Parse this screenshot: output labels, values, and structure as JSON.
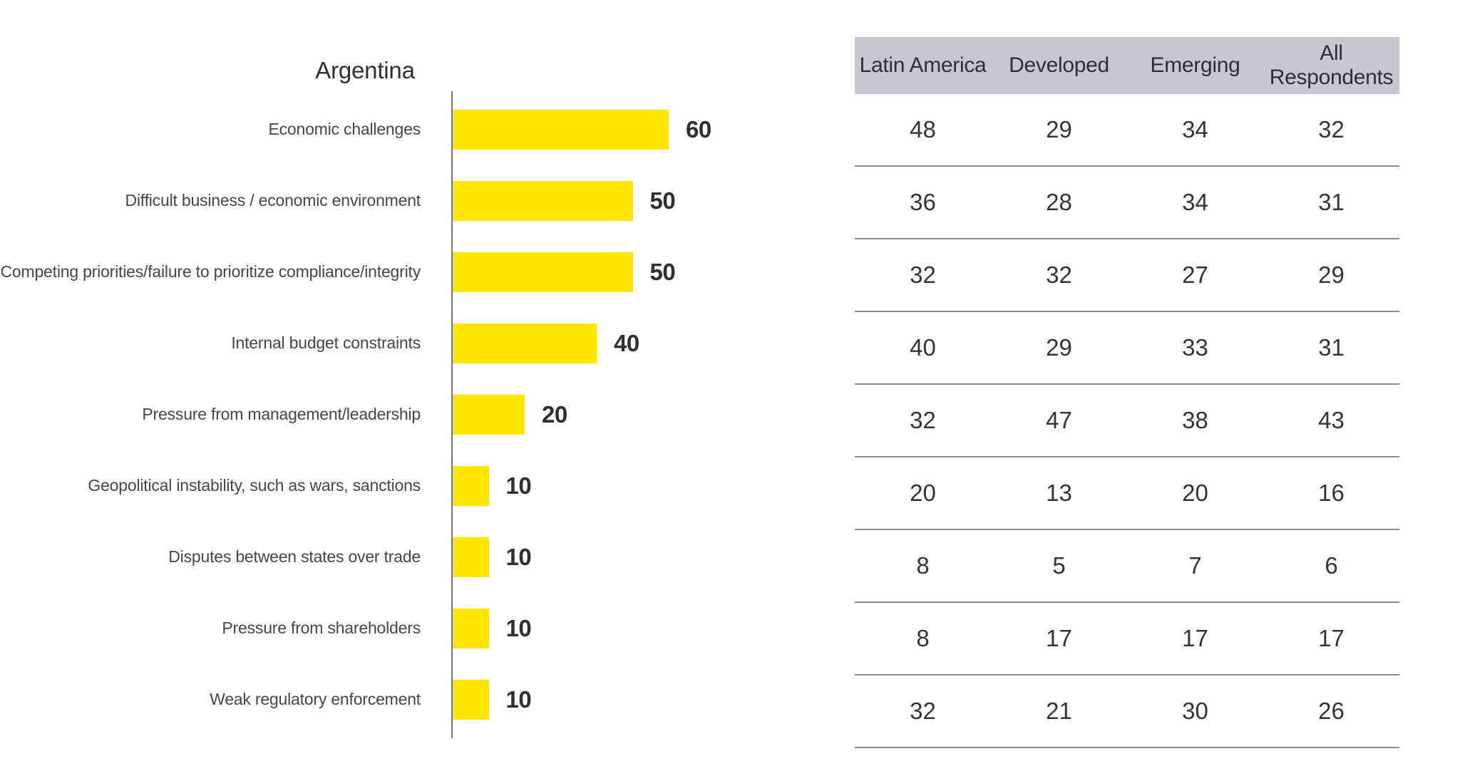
{
  "chart_data": {
    "type": "bar",
    "orientation": "horizontal",
    "title": "Argentina",
    "categories": [
      "Economic challenges",
      "Difficult business / economic environment",
      "Competing priorities/failure to prioritize compliance/integrity",
      "Internal budget constraints",
      "Pressure from management/leadership",
      "Geopolitical instability, such as wars, sanctions",
      "Disputes between states over trade",
      "Pressure from shareholders",
      "Weak regulatory enforcement"
    ],
    "values": [
      60,
      50,
      50,
      40,
      20,
      10,
      10,
      10,
      10
    ],
    "xlim": [
      0,
      70
    ],
    "data_labels_shown": true,
    "grid": false,
    "legend": "none",
    "comparison_table": {
      "columns": [
        "Latin America",
        "Developed",
        "Emerging",
        "All Respondents"
      ],
      "rows": [
        [
          48,
          29,
          34,
          32
        ],
        [
          36,
          28,
          34,
          31
        ],
        [
          32,
          32,
          27,
          29
        ],
        [
          40,
          29,
          33,
          31
        ],
        [
          32,
          47,
          38,
          43
        ],
        [
          20,
          13,
          20,
          16
        ],
        [
          8,
          5,
          7,
          6
        ],
        [
          8,
          17,
          17,
          17
        ],
        [
          32,
          21,
          30,
          26
        ]
      ]
    }
  },
  "colors": {
    "bar": "#FFE600",
    "header_bg": "#C7C7CF",
    "separator_line": "#8A8A94",
    "axis_line": "#75757F",
    "text_dark": "#2E2E38",
    "text_label": "#45454E"
  }
}
